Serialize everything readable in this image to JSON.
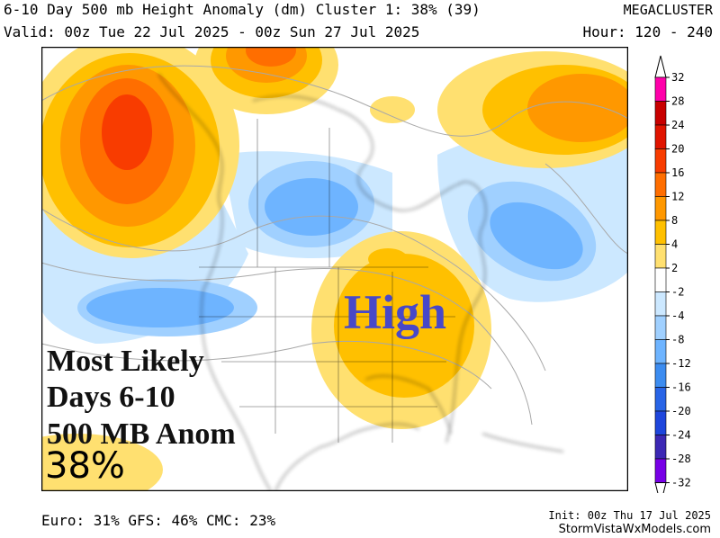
{
  "header": {
    "title": "6-10 Day 500 mb Height Anomaly (dm) Cluster 1: 38% (39)",
    "valid": "Valid: 00z Tue 22 Jul 2025 - 00z Sun 27 Jul 2025",
    "brand": "MEGACLUSTER",
    "hour": "Hour: 120 - 240"
  },
  "overlay": {
    "line1": "Most Likely",
    "line2": "Days 6-10",
    "line3": "500 MB Anom",
    "percent": "38%",
    "high_label": "High"
  },
  "legend": {
    "ticks": [
      "32",
      "28",
      "24",
      "20",
      "16",
      "12",
      "8",
      "4",
      "2",
      "-2",
      "-4",
      "-8",
      "-12",
      "-16",
      "-20",
      "-24",
      "-28",
      "-32"
    ],
    "colors": [
      "#ff00aa",
      "#c80000",
      "#e01400",
      "#f83c00",
      "#ff6e00",
      "#ff9800",
      "#ffc000",
      "#ffe070",
      "#ffffff",
      "#cce8ff",
      "#a0d0ff",
      "#6eb4ff",
      "#3c8cf0",
      "#2864e6",
      "#1e46dc",
      "#3c28b4",
      "#7800e6"
    ]
  },
  "footer": {
    "models": "Euro: 31% GFS: 46% CMC: 23%",
    "init": "Init: 00z Thu 17 Jul 2025",
    "site": "StormVistaWxModels.com"
  }
}
